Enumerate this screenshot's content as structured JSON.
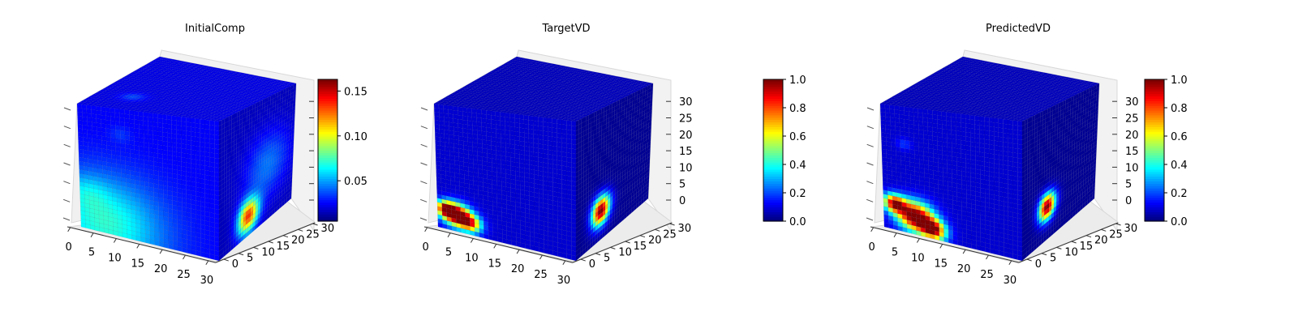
{
  "chart_data": [
    {
      "type": "heatmap",
      "subtype": "3d-voxel-cube",
      "title": "InitialComp",
      "axis_x_ticks": [
        "0",
        "5",
        "10",
        "15",
        "20",
        "25",
        "30"
      ],
      "axis_y_ticks": [
        "0",
        "5",
        "10",
        "15",
        "20",
        "25",
        "30"
      ],
      "axis_z_ticks": [],
      "colormap": "jet",
      "colorbar": {
        "min": 0.005,
        "max": 0.163,
        "ticks": [
          "0.05",
          "0.10",
          "0.15"
        ],
        "tick_values": [
          0.05,
          0.1,
          0.15
        ]
      },
      "grid": true,
      "features": [
        {
          "face": "front",
          "desc": "diffuse blob lower-left",
          "level": 0.045
        },
        {
          "face": "right",
          "desc": "small bright spot",
          "level": 0.11
        }
      ]
    },
    {
      "type": "heatmap",
      "subtype": "3d-voxel-cube",
      "title": "TargetVD",
      "axis_x_ticks": [
        "0",
        "5",
        "10",
        "15",
        "20",
        "25",
        "30"
      ],
      "axis_y_ticks": [
        "0",
        "5",
        "10",
        "15",
        "20",
        "25",
        "30"
      ],
      "axis_z_ticks": [
        "0",
        "5",
        "10",
        "15",
        "20",
        "25",
        "30"
      ],
      "colormap": "jet",
      "colorbar": {
        "min": 0.0,
        "max": 1.0,
        "ticks": [
          "0.0",
          "0.2",
          "0.4",
          "0.6",
          "0.8",
          "1.0"
        ],
        "tick_values": [
          0.0,
          0.2,
          0.4,
          0.6,
          0.8,
          1.0
        ]
      },
      "grid": true,
      "features": [
        {
          "face": "front",
          "desc": "hot band lower-left",
          "level": 1.0
        },
        {
          "face": "right",
          "desc": "hot spot lower-left",
          "level": 1.0
        }
      ]
    },
    {
      "type": "heatmap",
      "subtype": "3d-voxel-cube",
      "title": "PredictedVD",
      "axis_x_ticks": [
        "0",
        "5",
        "10",
        "15",
        "20",
        "25",
        "30"
      ],
      "axis_y_ticks": [
        "0",
        "5",
        "10",
        "15",
        "20",
        "25",
        "30"
      ],
      "axis_z_ticks": [
        "0",
        "5",
        "10",
        "15",
        "20",
        "25",
        "30"
      ],
      "colormap": "jet",
      "colorbar": {
        "min": 0.0,
        "max": 1.0,
        "ticks": [
          "0.0",
          "0.2",
          "0.4",
          "0.6",
          "0.8",
          "1.0"
        ],
        "tick_values": [
          0.0,
          0.2,
          0.4,
          0.6,
          0.8,
          1.0
        ]
      },
      "grid": true,
      "features": [
        {
          "face": "front",
          "desc": "large hot band lower-left",
          "level": 1.0
        },
        {
          "face": "right",
          "desc": "hot spot lower-left",
          "level": 1.0
        }
      ]
    }
  ]
}
